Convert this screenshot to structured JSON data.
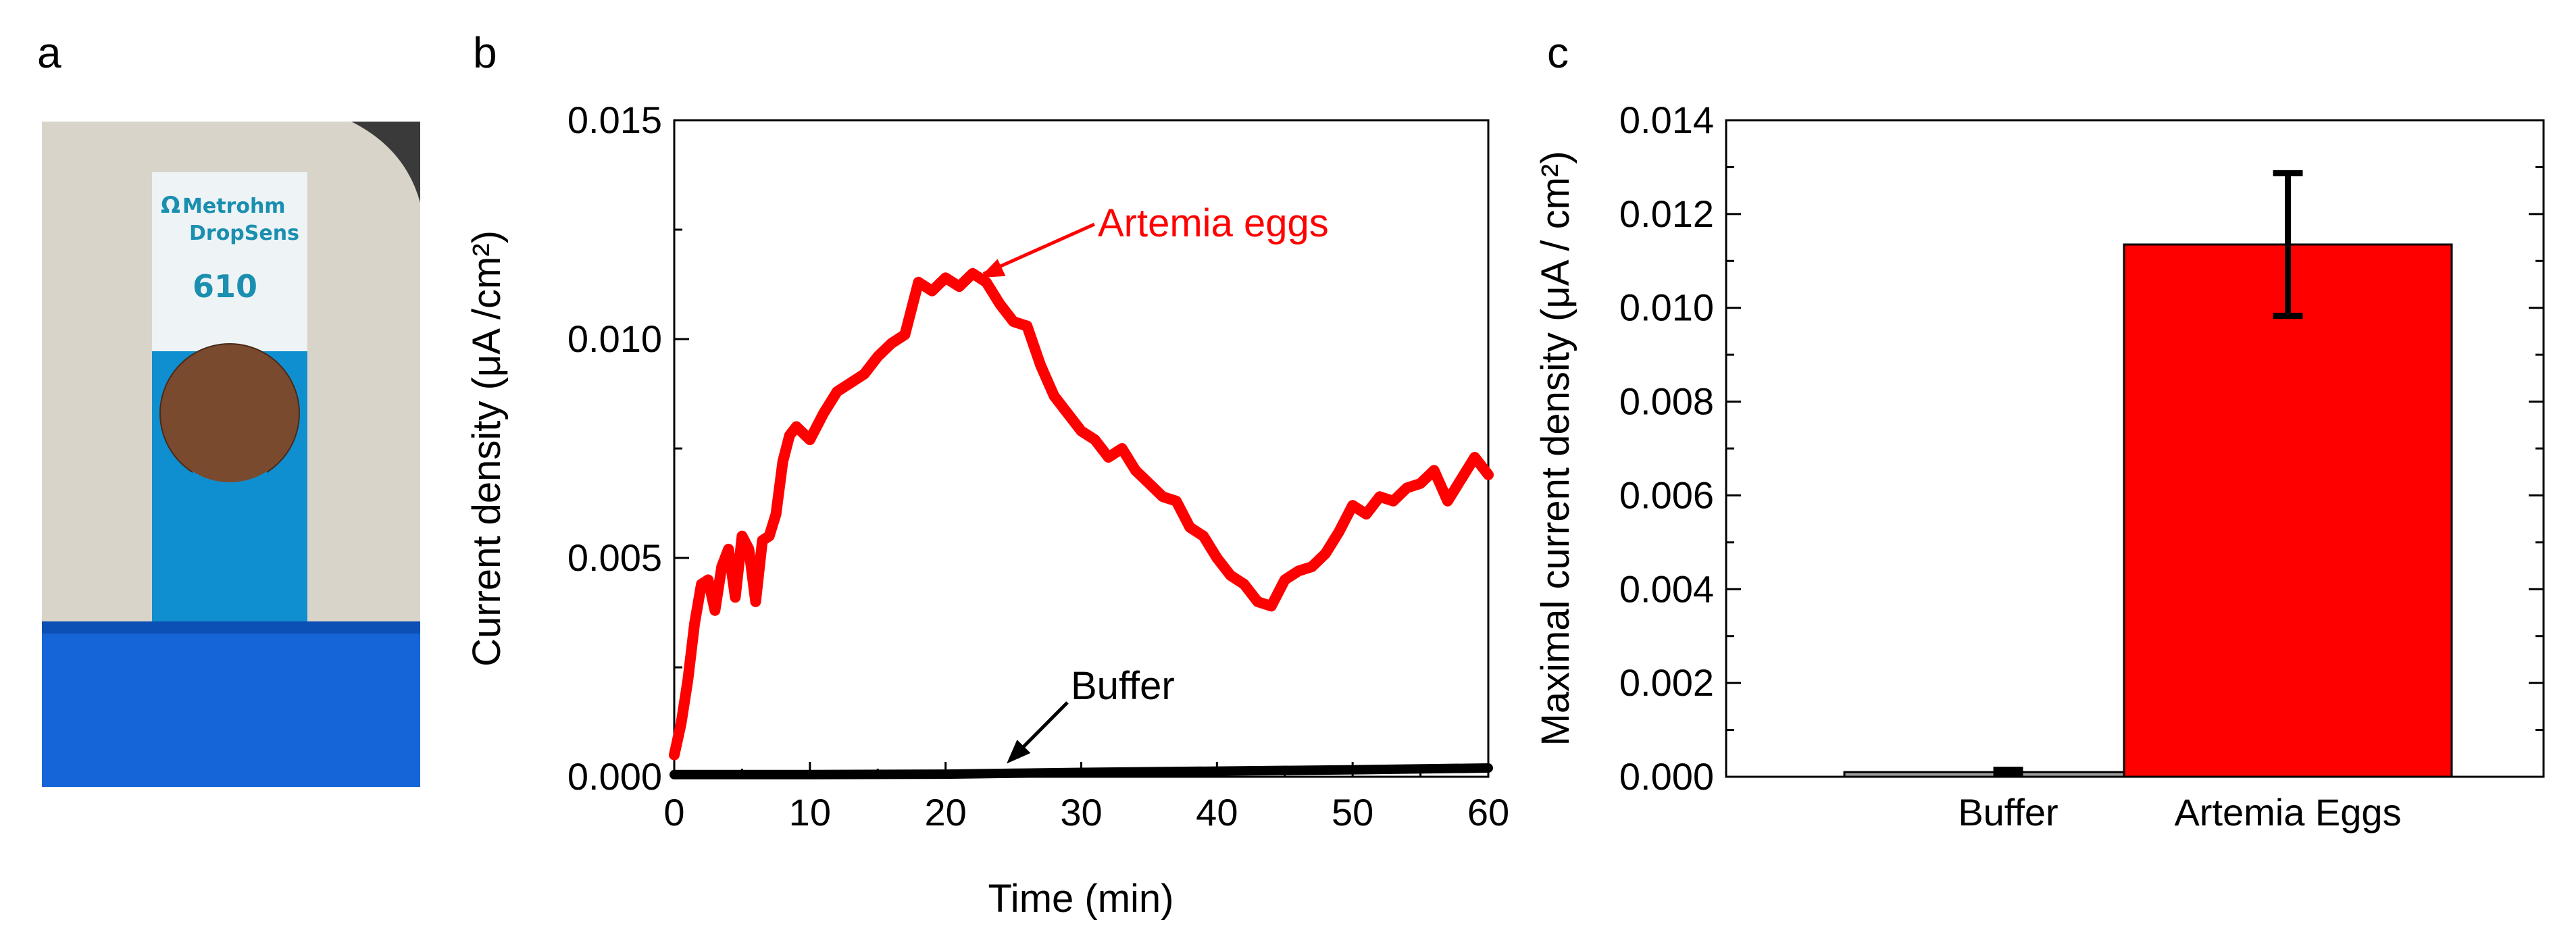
{
  "panels": {
    "a": {
      "label": "a",
      "photo": {
        "brand_line1": "Metrohm",
        "brand_line2": "DropSens",
        "model": "610",
        "logo_glyph": "Ω",
        "colors": {
          "strip": "#0f8fd0",
          "base": "#1565d8",
          "background": "#d9d4c9",
          "electrode": "#7a4a2f",
          "label": "#eef3f6"
        }
      }
    },
    "b": {
      "label": "b"
    },
    "c": {
      "label": "c"
    }
  },
  "chart_data": [
    {
      "id": "b",
      "type": "line",
      "xlabel": "Time (min)",
      "ylabel": "Current density (μA /cm²)",
      "xlim": [
        0,
        60
      ],
      "ylim": [
        0,
        0.015
      ],
      "xticks": [
        0,
        10,
        20,
        30,
        40,
        50,
        60
      ],
      "yticks": [
        "0.000",
        "0.005",
        "0.010",
        "0.015"
      ],
      "yticks_values": [
        0,
        0.005,
        0.01,
        0.015
      ],
      "series": [
        {
          "name": "Artemia eggs",
          "color": "#ff0000",
          "x": [
            0,
            0.5,
            1,
            1.5,
            2,
            2.5,
            3,
            3.5,
            4,
            4.5,
            5,
            5.5,
            6,
            6.5,
            7,
            7.5,
            8,
            8.5,
            9,
            10,
            11,
            12,
            13,
            14,
            15,
            16,
            17,
            18,
            19,
            20,
            21,
            22,
            23,
            24,
            25,
            26,
            27,
            28,
            29,
            30,
            31,
            32,
            33,
            34,
            35,
            36,
            37,
            38,
            39,
            40,
            41,
            42,
            43,
            44,
            45,
            46,
            47,
            48,
            49,
            50,
            51,
            52,
            53,
            54,
            55,
            56,
            57,
            58,
            59,
            60
          ],
          "y": [
            0.0005,
            0.0012,
            0.0022,
            0.0035,
            0.0044,
            0.0045,
            0.0038,
            0.0048,
            0.0052,
            0.0041,
            0.0055,
            0.0052,
            0.004,
            0.0054,
            0.0055,
            0.006,
            0.0072,
            0.0078,
            0.008,
            0.0077,
            0.0083,
            0.0088,
            0.009,
            0.0092,
            0.0096,
            0.0099,
            0.0101,
            0.0113,
            0.0111,
            0.0114,
            0.0112,
            0.0115,
            0.0113,
            0.0108,
            0.0104,
            0.0103,
            0.0094,
            0.0087,
            0.0083,
            0.0079,
            0.0077,
            0.0073,
            0.0075,
            0.007,
            0.0067,
            0.0064,
            0.0063,
            0.0057,
            0.0055,
            0.005,
            0.0046,
            0.0044,
            0.004,
            0.0039,
            0.0045,
            0.0047,
            0.0048,
            0.0051,
            0.0056,
            0.0062,
            0.006,
            0.0064,
            0.0063,
            0.0066,
            0.0067,
            0.007,
            0.0063,
            0.0068,
            0.0073,
            0.0069
          ]
        },
        {
          "name": "Buffer",
          "color": "#000000",
          "x": [
            0,
            10,
            20,
            25,
            30,
            40,
            50,
            60
          ],
          "y": [
            5e-05,
            5e-05,
            6e-05,
            8e-05,
            0.0001,
            0.00013,
            0.00016,
            0.0002
          ]
        }
      ],
      "annotations": [
        {
          "text": "Artemia eggs",
          "color": "#ff0000",
          "points_to": [
            22.5,
            0.0114
          ]
        },
        {
          "text": "Buffer",
          "color": "#000000",
          "points_to": [
            24.5,
            0.0003
          ]
        }
      ]
    },
    {
      "id": "c",
      "type": "bar",
      "categories": [
        "Buffer",
        "Artemia Eggs"
      ],
      "values": [
        0.0001,
        0.01135
      ],
      "errors": [
        5e-05,
        0.00152
      ],
      "colors": [
        "#a0a0a0",
        "#ff0000"
      ],
      "ylabel": "Maximal current density (μA / cm²)",
      "ylim": [
        0,
        0.014
      ],
      "yticks": [
        "0.000",
        "0.002",
        "0.004",
        "0.006",
        "0.008",
        "0.010",
        "0.012",
        "0.014"
      ],
      "yticks_values": [
        0,
        0.002,
        0.004,
        0.006,
        0.008,
        0.01,
        0.012,
        0.014
      ]
    }
  ]
}
